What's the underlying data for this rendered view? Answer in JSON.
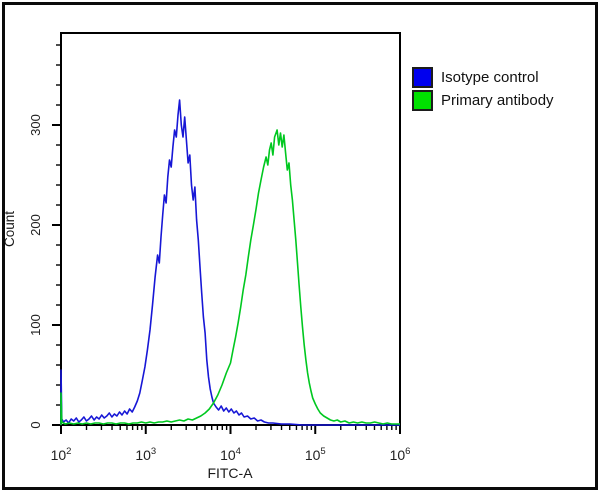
{
  "panel": {
    "background_color": "#ffffff",
    "border_color": "#0a0a0a"
  },
  "legend": {
    "entries": [
      {
        "label": "Isotype control",
        "color": "#0000ee"
      },
      {
        "label": "Primary antibody",
        "color": "#00e000"
      }
    ]
  },
  "chart_data": {
    "type": "line",
    "subtype": "flow-cytometry-histogram",
    "xlabel": "FITC-A",
    "ylabel": "Count",
    "x_scale": "log",
    "x_log_range": [
      2,
      6
    ],
    "x_tick_base": "10",
    "x_tick_exponents": [
      "2",
      "3",
      "4",
      "5",
      "6"
    ],
    "ylim": [
      0,
      392
    ],
    "y_major_ticks": [
      0,
      100,
      200,
      300
    ],
    "y_minor_tick_step": 20,
    "grid": false,
    "legend_position": "top-right",
    "axis_color": "#000000",
    "tick_label_color": "#222222",
    "series": [
      {
        "name": "Isotype control",
        "color": "#1717d6",
        "peak_x": 2500,
        "peak_count": 325,
        "points": [
          [
            2.0,
            0
          ],
          [
            2.0,
            55
          ],
          [
            2.01,
            6
          ],
          [
            2.03,
            3
          ],
          [
            2.06,
            5
          ],
          [
            2.09,
            2
          ],
          [
            2.12,
            6
          ],
          [
            2.15,
            4
          ],
          [
            2.18,
            7
          ],
          [
            2.21,
            3
          ],
          [
            2.24,
            5
          ],
          [
            2.27,
            8
          ],
          [
            2.3,
            4
          ],
          [
            2.33,
            6
          ],
          [
            2.36,
            9
          ],
          [
            2.39,
            5
          ],
          [
            2.42,
            8
          ],
          [
            2.45,
            6
          ],
          [
            2.48,
            10
          ],
          [
            2.51,
            7
          ],
          [
            2.54,
            9
          ],
          [
            2.57,
            12
          ],
          [
            2.6,
            8
          ],
          [
            2.63,
            11
          ],
          [
            2.66,
            9
          ],
          [
            2.69,
            13
          ],
          [
            2.72,
            10
          ],
          [
            2.75,
            14
          ],
          [
            2.78,
            11
          ],
          [
            2.81,
            16
          ],
          [
            2.84,
            13
          ],
          [
            2.87,
            18
          ],
          [
            2.9,
            24
          ],
          [
            2.93,
            32
          ],
          [
            2.96,
            45
          ],
          [
            2.99,
            58
          ],
          [
            3.02,
            75
          ],
          [
            3.05,
            95
          ],
          [
            3.08,
            120
          ],
          [
            3.11,
            148
          ],
          [
            3.14,
            170
          ],
          [
            3.16,
            162
          ],
          [
            3.18,
            188
          ],
          [
            3.2,
            210
          ],
          [
            3.22,
            230
          ],
          [
            3.24,
            222
          ],
          [
            3.26,
            248
          ],
          [
            3.28,
            265
          ],
          [
            3.3,
            258
          ],
          [
            3.32,
            278
          ],
          [
            3.34,
            295
          ],
          [
            3.36,
            288
          ],
          [
            3.38,
            310
          ],
          [
            3.4,
            325
          ],
          [
            3.42,
            300
          ],
          [
            3.44,
            288
          ],
          [
            3.46,
            308
          ],
          [
            3.48,
            285
          ],
          [
            3.5,
            262
          ],
          [
            3.52,
            270
          ],
          [
            3.54,
            240
          ],
          [
            3.56,
            225
          ],
          [
            3.58,
            238
          ],
          [
            3.6,
            205
          ],
          [
            3.62,
            185
          ],
          [
            3.64,
            158
          ],
          [
            3.66,
            132
          ],
          [
            3.68,
            108
          ],
          [
            3.7,
            92
          ],
          [
            3.72,
            65
          ],
          [
            3.74,
            48
          ],
          [
            3.76,
            36
          ],
          [
            3.78,
            28
          ],
          [
            3.8,
            22
          ],
          [
            3.83,
            18
          ],
          [
            3.86,
            15
          ],
          [
            3.89,
            19
          ],
          [
            3.92,
            14
          ],
          [
            3.95,
            17
          ],
          [
            3.98,
            13
          ],
          [
            4.01,
            16
          ],
          [
            4.04,
            12
          ],
          [
            4.07,
            14
          ],
          [
            4.1,
            10
          ],
          [
            4.13,
            12
          ],
          [
            4.16,
            8
          ],
          [
            4.2,
            9
          ],
          [
            4.24,
            6
          ],
          [
            4.28,
            7
          ],
          [
            4.32,
            4
          ],
          [
            4.36,
            5
          ],
          [
            4.4,
            3
          ],
          [
            4.45,
            2
          ],
          [
            4.5,
            2
          ],
          [
            4.6,
            1
          ],
          [
            4.7,
            1
          ],
          [
            4.85,
            0
          ],
          [
            5.0,
            0
          ],
          [
            5.2,
            0
          ],
          [
            5.4,
            0
          ],
          [
            5.6,
            0
          ],
          [
            5.8,
            0
          ],
          [
            6.0,
            0
          ]
        ]
      },
      {
        "name": "Primary antibody",
        "color": "#00c820",
        "peak_x": 35000,
        "peak_count": 295,
        "points": [
          [
            2.0,
            0
          ],
          [
            2.0,
            32
          ],
          [
            2.01,
            3
          ],
          [
            2.05,
            1
          ],
          [
            2.1,
            2
          ],
          [
            2.15,
            1
          ],
          [
            2.2,
            2
          ],
          [
            2.25,
            1
          ],
          [
            2.3,
            2
          ],
          [
            2.35,
            1
          ],
          [
            2.4,
            2
          ],
          [
            2.45,
            2
          ],
          [
            2.5,
            1
          ],
          [
            2.55,
            2
          ],
          [
            2.6,
            2
          ],
          [
            2.65,
            1
          ],
          [
            2.7,
            2
          ],
          [
            2.75,
            2
          ],
          [
            2.8,
            1
          ],
          [
            2.85,
            2
          ],
          [
            2.9,
            2
          ],
          [
            2.95,
            3
          ],
          [
            3.0,
            2
          ],
          [
            3.05,
            3
          ],
          [
            3.1,
            2
          ],
          [
            3.15,
            3
          ],
          [
            3.2,
            3
          ],
          [
            3.25,
            4
          ],
          [
            3.3,
            3
          ],
          [
            3.35,
            4
          ],
          [
            3.4,
            5
          ],
          [
            3.45,
            4
          ],
          [
            3.5,
            6
          ],
          [
            3.55,
            5
          ],
          [
            3.6,
            7
          ],
          [
            3.65,
            9
          ],
          [
            3.7,
            12
          ],
          [
            3.75,
            16
          ],
          [
            3.8,
            22
          ],
          [
            3.85,
            30
          ],
          [
            3.9,
            40
          ],
          [
            3.95,
            52
          ],
          [
            4.0,
            62
          ],
          [
            4.03,
            75
          ],
          [
            4.06,
            88
          ],
          [
            4.09,
            102
          ],
          [
            4.12,
            118
          ],
          [
            4.15,
            135
          ],
          [
            4.18,
            150
          ],
          [
            4.21,
            168
          ],
          [
            4.24,
            185
          ],
          [
            4.27,
            200
          ],
          [
            4.3,
            215
          ],
          [
            4.33,
            232
          ],
          [
            4.36,
            245
          ],
          [
            4.39,
            258
          ],
          [
            4.42,
            268
          ],
          [
            4.44,
            260
          ],
          [
            4.46,
            275
          ],
          [
            4.48,
            282
          ],
          [
            4.5,
            270
          ],
          [
            4.52,
            288
          ],
          [
            4.55,
            295
          ],
          [
            4.57,
            280
          ],
          [
            4.59,
            292
          ],
          [
            4.61,
            278
          ],
          [
            4.63,
            290
          ],
          [
            4.65,
            272
          ],
          [
            4.67,
            255
          ],
          [
            4.69,
            262
          ],
          [
            4.71,
            240
          ],
          [
            4.73,
            225
          ],
          [
            4.75,
            205
          ],
          [
            4.77,
            185
          ],
          [
            4.79,
            162
          ],
          [
            4.81,
            140
          ],
          [
            4.83,
            118
          ],
          [
            4.85,
            98
          ],
          [
            4.87,
            80
          ],
          [
            4.89,
            65
          ],
          [
            4.91,
            52
          ],
          [
            4.93,
            42
          ],
          [
            4.95,
            34
          ],
          [
            4.97,
            27
          ],
          [
            5.0,
            21
          ],
          [
            5.03,
            16
          ],
          [
            5.06,
            12
          ],
          [
            5.1,
            9
          ],
          [
            5.14,
            7
          ],
          [
            5.18,
            5
          ],
          [
            5.22,
            4
          ],
          [
            5.26,
            5
          ],
          [
            5.3,
            3
          ],
          [
            5.35,
            4
          ],
          [
            5.4,
            2
          ],
          [
            5.45,
            3
          ],
          [
            5.5,
            2
          ],
          [
            5.55,
            3
          ],
          [
            5.6,
            2
          ],
          [
            5.65,
            2
          ],
          [
            5.7,
            3
          ],
          [
            5.75,
            2
          ],
          [
            5.8,
            1
          ],
          [
            5.85,
            2
          ],
          [
            5.9,
            1
          ],
          [
            5.95,
            1
          ],
          [
            6.0,
            1
          ]
        ]
      }
    ]
  }
}
